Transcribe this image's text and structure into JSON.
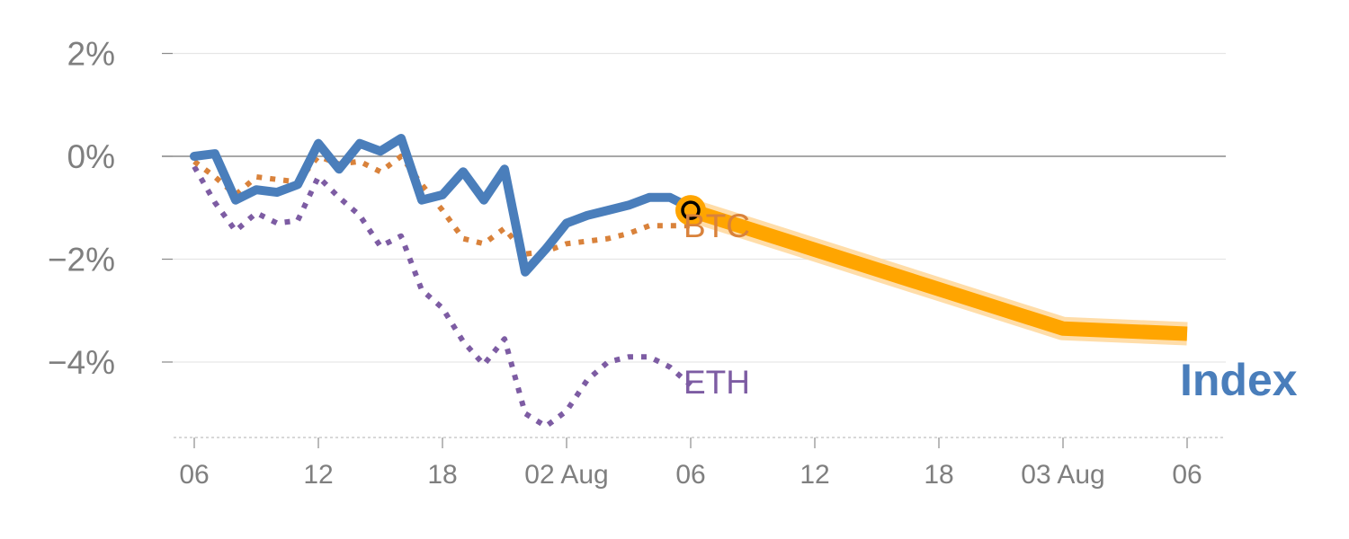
{
  "chart_data": {
    "type": "line",
    "xlabel": "",
    "ylabel": "",
    "x_ticks": [
      "06",
      "12",
      "18",
      "02 Aug",
      "06",
      "12",
      "18",
      "03 Aug",
      "06"
    ],
    "y_ticks": [
      "2%",
      "0%",
      "−2%",
      "−4%"
    ],
    "ylim": [
      -5.5,
      2.2
    ],
    "grid": true,
    "legend": "inline labels at series ends",
    "x_unit": "hours from first tick",
    "series": [
      {
        "name": "Index",
        "color": "#4a7ebb",
        "style": "solid",
        "x": [
          0,
          1,
          2,
          3,
          4,
          5,
          6,
          7,
          8,
          9,
          10,
          11,
          12,
          13,
          14,
          15,
          16,
          17,
          18,
          19,
          20,
          21,
          22,
          23,
          24
        ],
        "y": [
          0.0,
          0.05,
          -0.85,
          -0.65,
          -0.7,
          -0.55,
          0.25,
          -0.25,
          0.25,
          0.1,
          0.35,
          -0.85,
          -0.75,
          -0.3,
          -0.85,
          -0.25,
          -2.25,
          -1.8,
          -1.3,
          -1.15,
          -1.05,
          -0.95,
          -0.8,
          -0.8,
          -1.0
        ]
      },
      {
        "name": "BTC",
        "color": "#d9823b",
        "style": "dotted",
        "x": [
          0,
          1,
          2,
          3,
          4,
          5,
          6,
          7,
          8,
          9,
          10,
          11,
          12,
          13,
          14,
          15,
          16,
          17,
          18,
          19,
          20,
          21,
          22,
          23,
          24
        ],
        "y": [
          -0.1,
          -0.4,
          -0.75,
          -0.4,
          -0.45,
          -0.5,
          0.0,
          -0.15,
          -0.1,
          -0.3,
          0.0,
          -0.55,
          -1.05,
          -1.6,
          -1.7,
          -1.4,
          -1.9,
          -1.85,
          -1.7,
          -1.65,
          -1.6,
          -1.5,
          -1.35,
          -1.35,
          -1.35
        ]
      },
      {
        "name": "ETH",
        "color": "#7d5ca3",
        "style": "dotted",
        "x": [
          0,
          1,
          2,
          3,
          4,
          5,
          6,
          7,
          8,
          9,
          10,
          11,
          12,
          13,
          14,
          15,
          16,
          17,
          18,
          19,
          20,
          21,
          22,
          23,
          24
        ],
        "y": [
          -0.2,
          -0.9,
          -1.45,
          -1.1,
          -1.3,
          -1.25,
          -0.4,
          -0.8,
          -1.15,
          -1.75,
          -1.55,
          -2.6,
          -2.95,
          -3.6,
          -4.05,
          -3.55,
          -5.0,
          -5.25,
          -4.95,
          -4.35,
          -4.0,
          -3.9,
          -3.9,
          -4.1,
          -4.45
        ]
      },
      {
        "name": "Index forecast",
        "color": "#ffa500",
        "style": "thick-band",
        "x": [
          24,
          42,
          48
        ],
        "y": [
          -1.05,
          -3.35,
          -3.45
        ]
      }
    ],
    "marker": {
      "x": 24,
      "y": -1.05,
      "fill": "#ffa500",
      "stroke": "#000000"
    },
    "labels": {
      "index": "Index",
      "btc": "BTC",
      "eth": "ETH"
    }
  }
}
